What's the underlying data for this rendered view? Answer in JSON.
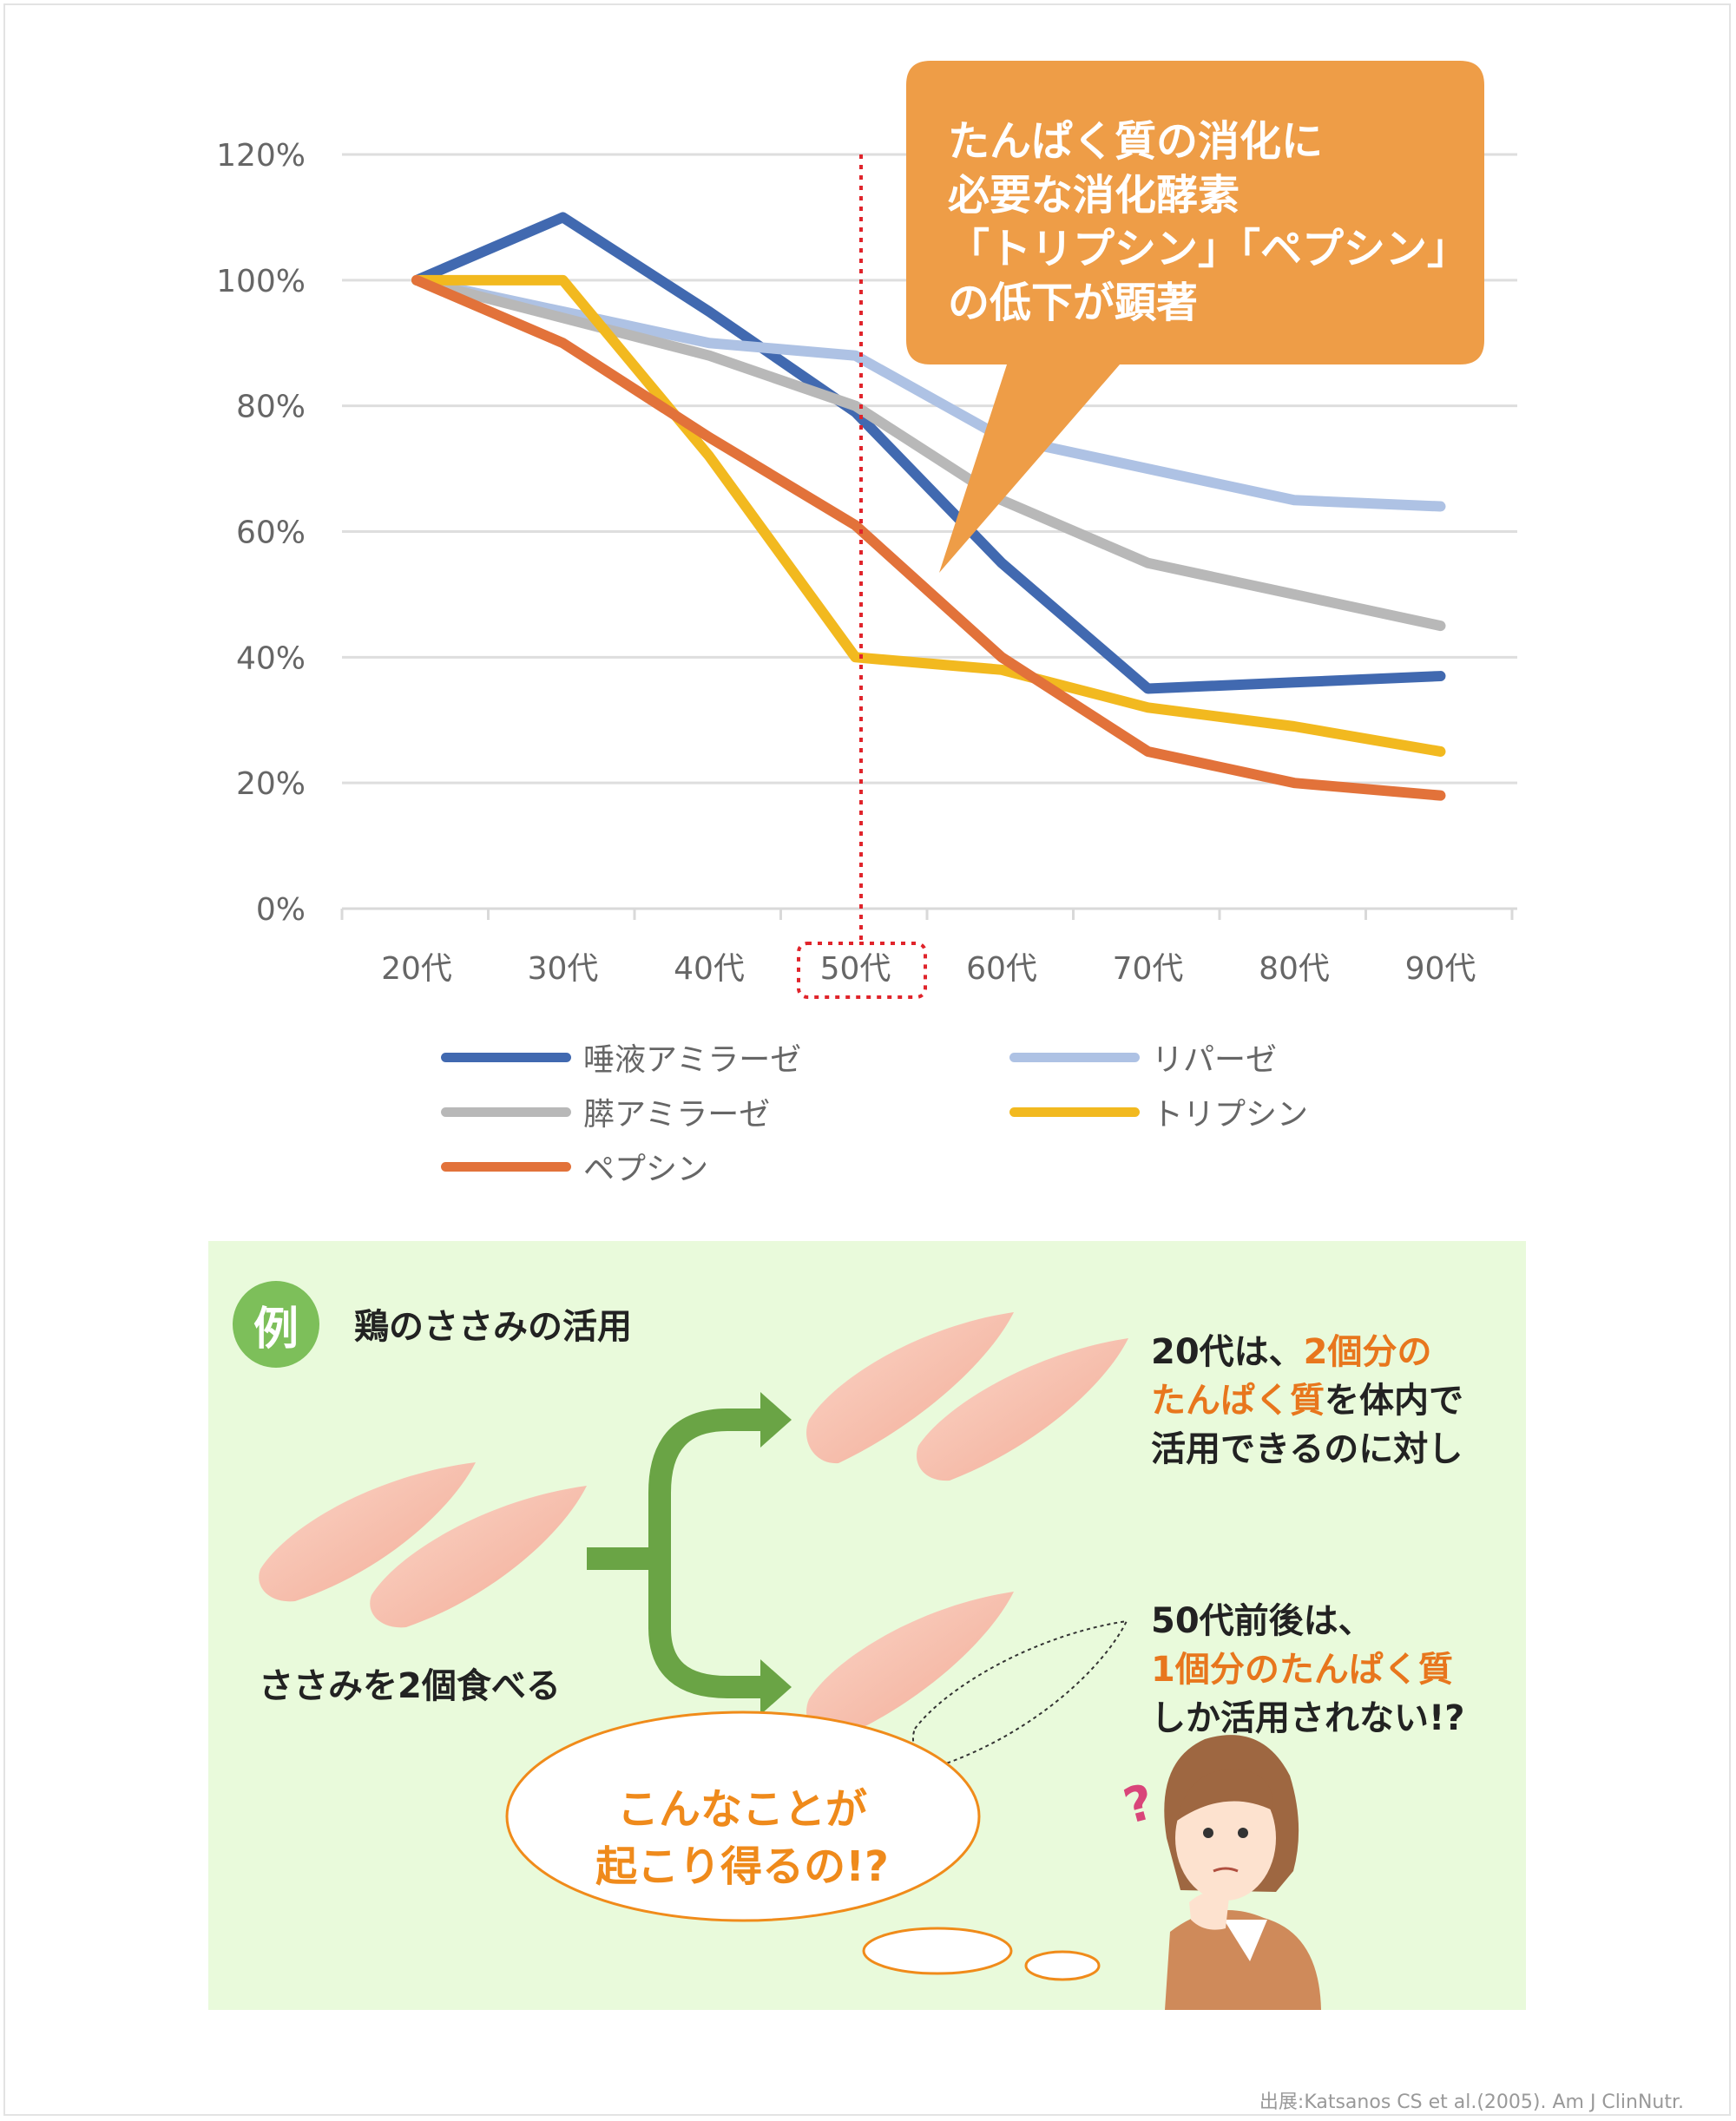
{
  "chart_data": {
    "type": "line",
    "categories": [
      "20代",
      "30代",
      "40代",
      "50代",
      "60代",
      "70代",
      "80代",
      "90代"
    ],
    "ylim": [
      0,
      1.2
    ],
    "yticks": [
      "0%",
      "20%",
      "40%",
      "60%",
      "80%",
      "100%",
      "120%"
    ],
    "grid": true,
    "legend_position": "bottom",
    "highlight_category": "50代",
    "series": [
      {
        "name": "唾液アミラーゼ",
        "color": "#4169b0",
        "values": [
          1.0,
          1.1,
          0.95,
          0.79,
          0.55,
          0.35,
          0.36,
          0.37
        ]
      },
      {
        "name": "リパーゼ",
        "color": "#aec2e4",
        "values": [
          1.0,
          0.95,
          0.9,
          0.88,
          0.75,
          0.7,
          0.65,
          0.64
        ]
      },
      {
        "name": "膵アミラーゼ",
        "color": "#b8b8b8",
        "values": [
          1.0,
          0.94,
          0.88,
          0.8,
          0.65,
          0.55,
          0.5,
          0.45
        ]
      },
      {
        "name": "トリプシン",
        "color": "#f2b91f",
        "values": [
          1.0,
          1.0,
          0.72,
          0.4,
          0.38,
          0.32,
          0.29,
          0.25
        ]
      },
      {
        "name": "ペプシン",
        "color": "#e2723a",
        "values": [
          1.0,
          0.9,
          0.75,
          0.61,
          0.4,
          0.25,
          0.2,
          0.18
        ]
      }
    ]
  },
  "callout": {
    "color": "#ee9d47",
    "lines": [
      "たんぱく質の消化に",
      "必要な消化酵素",
      "「トリプシン」「ペプシン」",
      "の低下が顕著"
    ]
  },
  "example": {
    "badge": "例",
    "title": "鶏のささみの活用",
    "eat_label": "ささみを2個食べる",
    "result_20s": {
      "l1a": "20代",
      "l1b": "は、",
      "l1c": "2個分の",
      "l2a": "たんぱく質",
      "l2b": "を体内で",
      "l3": "活用できるのに対し"
    },
    "result_50s": {
      "l1a": "50代前後",
      "l1b": "は、",
      "l2": "1個分のたんぱく質",
      "l3": "しか活用されない!?"
    },
    "thought": [
      "こんなことが",
      "起こり得るの!?"
    ],
    "question_mark": "?"
  },
  "source": "出展:Katsanos CS et al.(2005). Am J ClinNutr.",
  "colors": {
    "panel_bg": "#e9fadb",
    "arrow": "#6aa445",
    "highlight_text": "#e8761d",
    "thought_text": "#ef8a1b"
  }
}
